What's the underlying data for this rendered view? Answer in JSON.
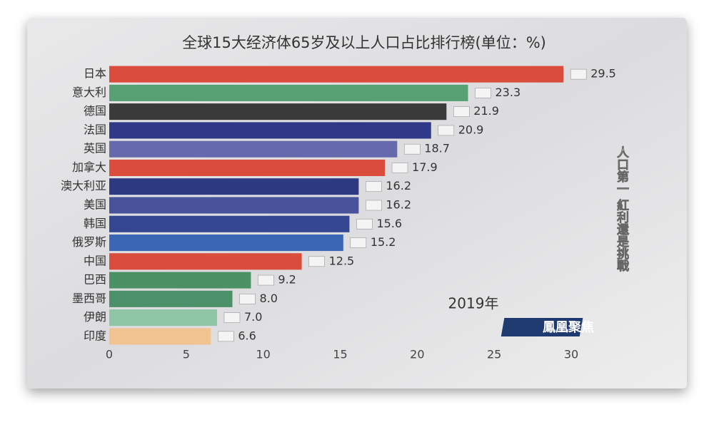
{
  "chart_data": {
    "type": "barh",
    "title": "全球15大经济体65岁及以上人口占比排行榜(单位：%)",
    "annotation": "2019年",
    "categories": [
      "日本",
      "意大利",
      "德国",
      "法国",
      "英国",
      "加拿大",
      "澳大利亚",
      "美国",
      "韩国",
      "俄罗斯",
      "中国",
      "巴西",
      "墨西哥",
      "伊朗",
      "印度"
    ],
    "values": [
      29.5,
      23.3,
      21.9,
      20.9,
      18.7,
      17.9,
      16.2,
      16.2,
      15.6,
      15.2,
      12.5,
      9.2,
      8.0,
      7.0,
      6.6
    ],
    "value_labels": [
      "29.5",
      "23.3",
      "21.9",
      "20.9",
      "18.7",
      "17.9",
      "16.2",
      "16.2",
      "15.6",
      "15.2",
      "12.5",
      "9.2",
      "8.0",
      "7.0",
      "6.6"
    ],
    "colors": [
      "#d9402f",
      "#4a9a6a",
      "#2b2b2b",
      "#1f2a80",
      "#5b60a8",
      "#d9402f",
      "#1d2a78",
      "#3b4696",
      "#27398a",
      "#2b5cb0",
      "#d9402f",
      "#3e8a5a",
      "#3f8a5e",
      "#86c2a0",
      "#f2c08a"
    ],
    "xlim": [
      0,
      30
    ],
    "xticks": [
      0,
      5,
      10,
      15,
      20,
      25,
      30
    ],
    "grid": false
  },
  "overlay": {
    "side_caption": "人口第一 紅利還是挑戰",
    "logo": "鳳凰聚焦"
  }
}
